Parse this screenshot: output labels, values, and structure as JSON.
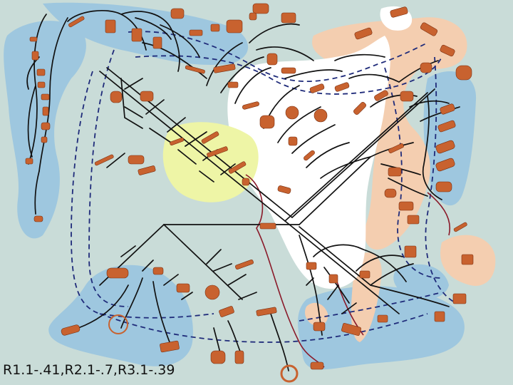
{
  "figure": {
    "caption": "R1.1-.41,R2.1-.7,R3.1-.39",
    "colors": {
      "background": "#c9dcd8",
      "blue_region": "#9ec7df",
      "peach_region": "#f4ceb0",
      "white_region": "#ffffff",
      "yellow_region": "#eef5a6",
      "tree_lines": "#111111",
      "dashed_paths": "#1f2b7a",
      "red_paths": "#8a1a2a",
      "specimen": "#c8622f"
    },
    "icons": [
      "shell-specimen-icon"
    ]
  }
}
